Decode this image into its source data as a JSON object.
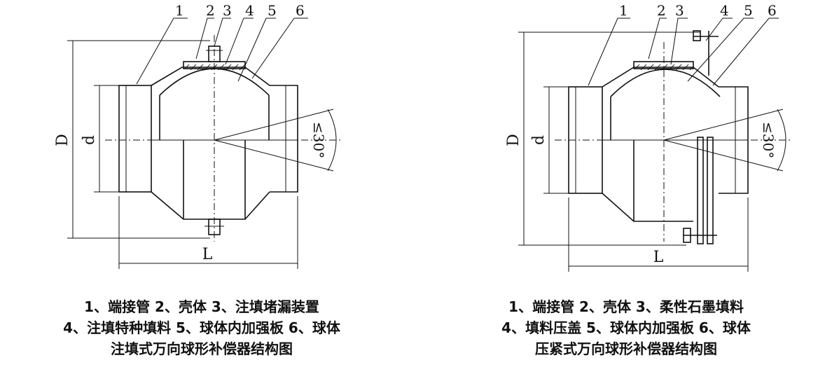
{
  "left": {
    "part_labels": [
      "1",
      "2",
      "3",
      "4",
      "5",
      "6"
    ],
    "dim_D": "D",
    "dim_d": "d",
    "dim_L": "L",
    "angle": "≤30°",
    "legend_line1": "1、端接管 2、壳体 3、注填堵漏装置",
    "legend_line2": "4、注填特种填料 5、球体内加强板 6、球体",
    "title": "注填式万向球形补偿器结构图"
  },
  "right": {
    "part_labels": [
      "1",
      "2",
      "3",
      "4",
      "5",
      "6"
    ],
    "dim_D": "D",
    "dim_d": "d",
    "dim_L": "L",
    "angle": "≤30°",
    "legend_line1": "1、端接管 2、壳体 3、柔性石墨填料",
    "legend_line2": "4、填料压盖 5、球体内加强板 6、球体",
    "title": "压紧式万向球形补偿器结构图"
  }
}
